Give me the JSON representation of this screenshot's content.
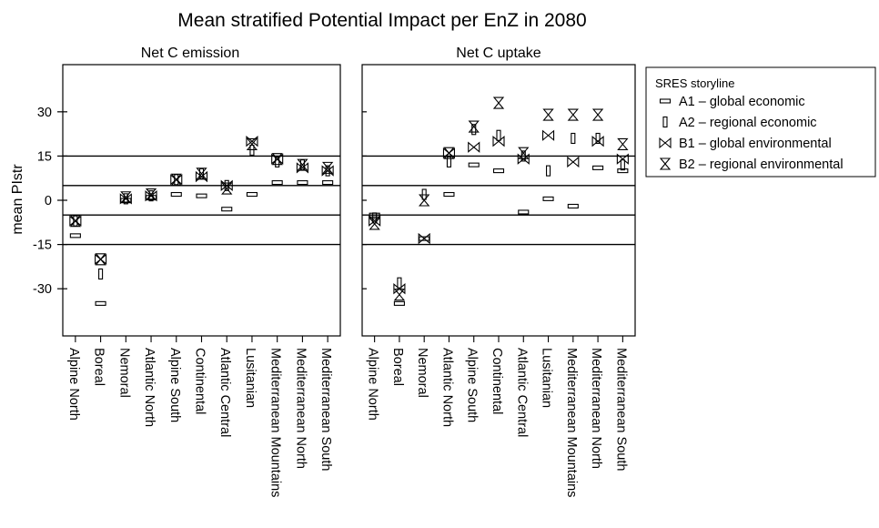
{
  "chart_data": {
    "type": "scatter",
    "title": "Mean stratified Potential Impact per EnZ in 2080",
    "ylabel": "mean PIstr",
    "ylim": [
      -46,
      46
    ],
    "yticks": [
      -30,
      -15,
      0,
      15,
      30
    ],
    "reference_lines": [
      -15,
      -5,
      5,
      15
    ],
    "categories": [
      "Alpine North",
      "Boreal",
      "Nemoral",
      "Atlantic North",
      "Alpine South",
      "Continental",
      "Atlantic Central",
      "Lusitanian",
      "Mediterranean Mountains",
      "Mediterranean North",
      "Mediterranean South"
    ],
    "legend": {
      "title": "SRES storyline",
      "position": "right",
      "entries": [
        {
          "symbol": "A1",
          "label": "A1 – global economic"
        },
        {
          "symbol": "A2",
          "label": "A2 – regional economic"
        },
        {
          "symbol": "B1",
          "label": "B1 – global environmental"
        },
        {
          "symbol": "B2",
          "label": "B2 – regional environmental"
        }
      ]
    },
    "panels": [
      {
        "title": "Net C emission",
        "series": [
          {
            "name": "A1",
            "values": [
              -12,
              -35,
              0,
              1,
              2,
              1.5,
              -3,
              2,
              6,
              6,
              6
            ]
          },
          {
            "name": "A2",
            "values": [
              -7,
              -25,
              0.5,
              1.5,
              7,
              9,
              5,
              17,
              13,
              12,
              10
            ]
          },
          {
            "name": "B1",
            "values": [
              -7,
              -20,
              0.5,
              1.5,
              7,
              8,
              5,
              20,
              14,
              11,
              10
            ]
          },
          {
            "name": "B2",
            "values": [
              -7,
              -20,
              1,
              2,
              7,
              9,
              4,
              19,
              14,
              12,
              11
            ]
          }
        ]
      },
      {
        "title": "Net C uptake",
        "series": [
          {
            "name": "A1",
            "values": [
              -5,
              -35,
              -13,
              2,
              12,
              10,
              -4,
              0.5,
              -2,
              11,
              10
            ]
          },
          {
            "name": "A2",
            "values": [
              -6,
              -28,
              2,
              13,
              24,
              22,
              15,
              10,
              21,
              21,
              12
            ]
          },
          {
            "name": "B1",
            "values": [
              -7,
              -30,
              -13,
              16,
              18,
              20,
              14,
              22,
              13,
              20,
              14
            ]
          },
          {
            "name": "B2",
            "values": [
              -8,
              -32,
              0,
              16,
              25,
              33,
              16,
              29,
              29,
              29,
              19
            ]
          }
        ]
      }
    ]
  }
}
